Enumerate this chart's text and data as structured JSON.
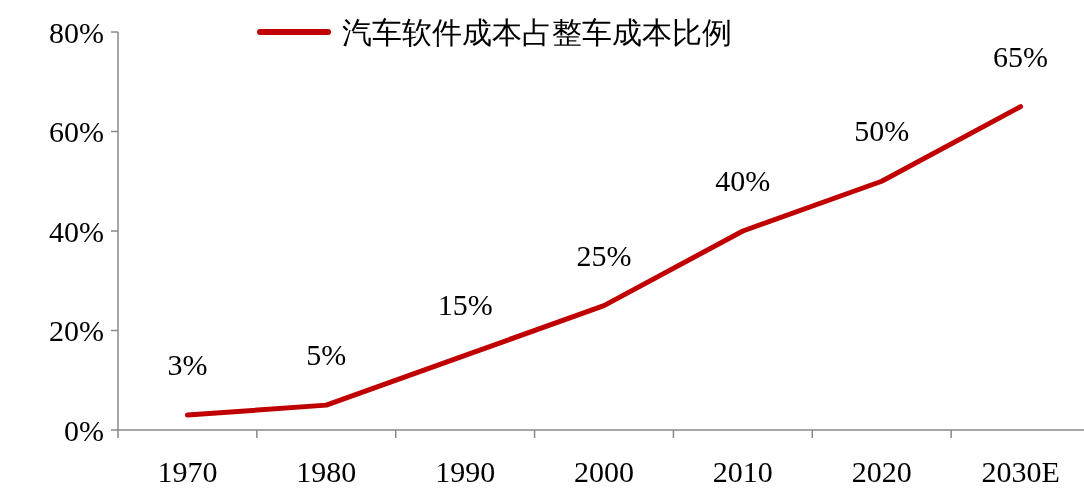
{
  "chart_data": {
    "type": "line",
    "categories": [
      "1970",
      "1980",
      "1990",
      "2000",
      "2010",
      "2020",
      "2030E"
    ],
    "series": [
      {
        "name": "汽车软件成本占整车成本比例",
        "color": "#c00000",
        "values": [
          3,
          5,
          15,
          25,
          40,
          50,
          65
        ],
        "value_labels": [
          "3%",
          "5%",
          "15%",
          "25%",
          "40%",
          "50%",
          "65%"
        ]
      }
    ],
    "ylim": [
      0,
      80
    ],
    "yticks": [
      {
        "value": 0,
        "label": "0%"
      },
      {
        "value": 20,
        "label": "20%"
      },
      {
        "value": 40,
        "label": "40%"
      },
      {
        "value": 60,
        "label": "60%"
      },
      {
        "value": 80,
        "label": "80%"
      }
    ],
    "legend": "top",
    "grid": false,
    "marker": "none",
    "line_style": "solid"
  }
}
